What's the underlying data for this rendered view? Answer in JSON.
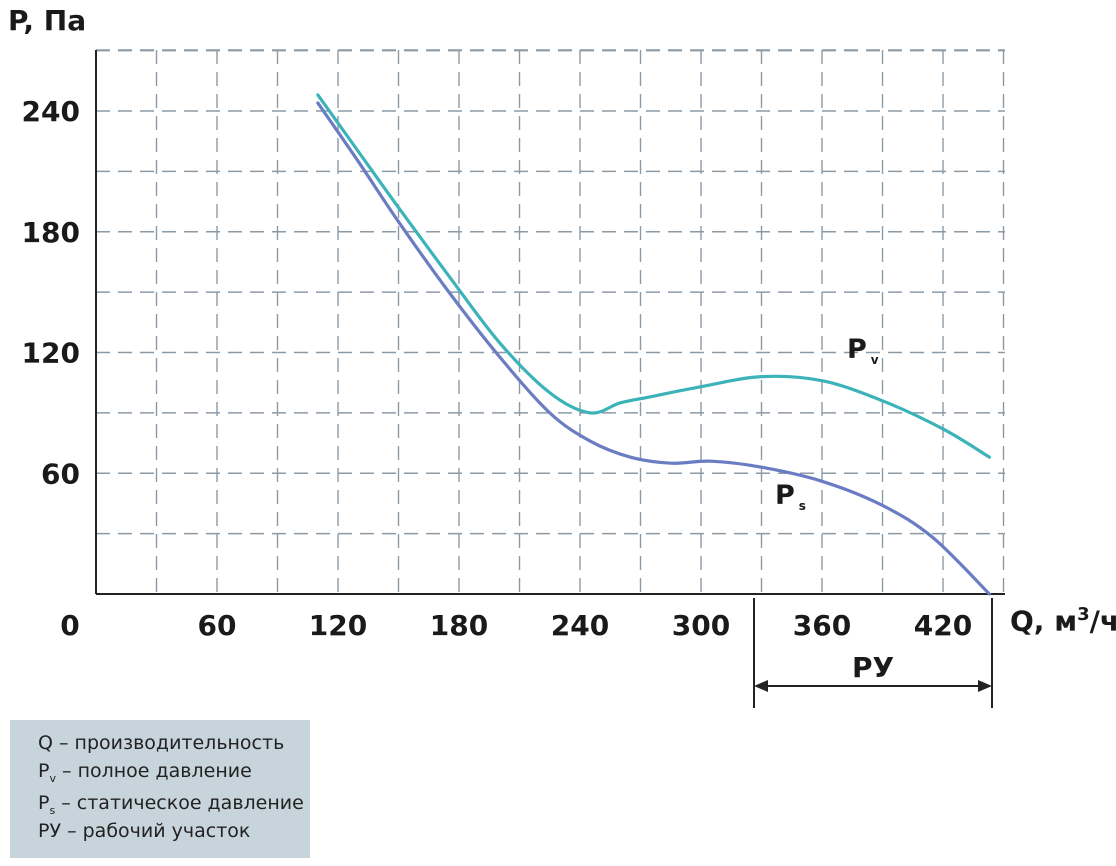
{
  "chart_data": {
    "type": "line",
    "ylabel": "P, Па",
    "xlabel_main": "Q, м",
    "xlabel_sup": "3",
    "xlabel_tail": "/ч",
    "xlim": [
      0,
      450
    ],
    "ylim": [
      0,
      270
    ],
    "x_ticks": [
      0,
      60,
      120,
      180,
      240,
      300,
      360,
      420
    ],
    "y_ticks": [
      60,
      120,
      180,
      240
    ],
    "grid": true,
    "series": [
      {
        "name": "Pv",
        "label_main": "P",
        "label_sub": "v",
        "color": "#3bb3b8",
        "x": [
          110,
          130,
          150,
          175,
          200,
          225,
          245,
          260,
          275,
          300,
          330,
          360,
          390,
          420,
          443
        ],
        "y": [
          248,
          220,
          192,
          158,
          125,
          100,
          90,
          95,
          98,
          103,
          108,
          106,
          96,
          82,
          68
        ]
      },
      {
        "name": "Ps",
        "label_main": "P",
        "label_sub": "s",
        "color": "#6b7dc2",
        "x": [
          110,
          130,
          150,
          175,
          200,
          225,
          245,
          265,
          285,
          305,
          330,
          360,
          390,
          415,
          443
        ],
        "y": [
          244,
          215,
          185,
          150,
          118,
          90,
          76,
          68,
          65,
          66,
          63,
          56,
          44,
          28,
          0
        ]
      }
    ],
    "working_range": {
      "label": "РУ",
      "x_start": 327,
      "x_end": 445
    }
  },
  "legend": {
    "q": {
      "main": "Q",
      "text": " – производительность"
    },
    "pv": {
      "main": "P",
      "sub": "v",
      "text": " – полное давление"
    },
    "ps": {
      "main": "P",
      "sub": "s",
      "text": " – статическое давление"
    },
    "ru": {
      "main": "РУ",
      "text": " – рабочий участок"
    }
  }
}
